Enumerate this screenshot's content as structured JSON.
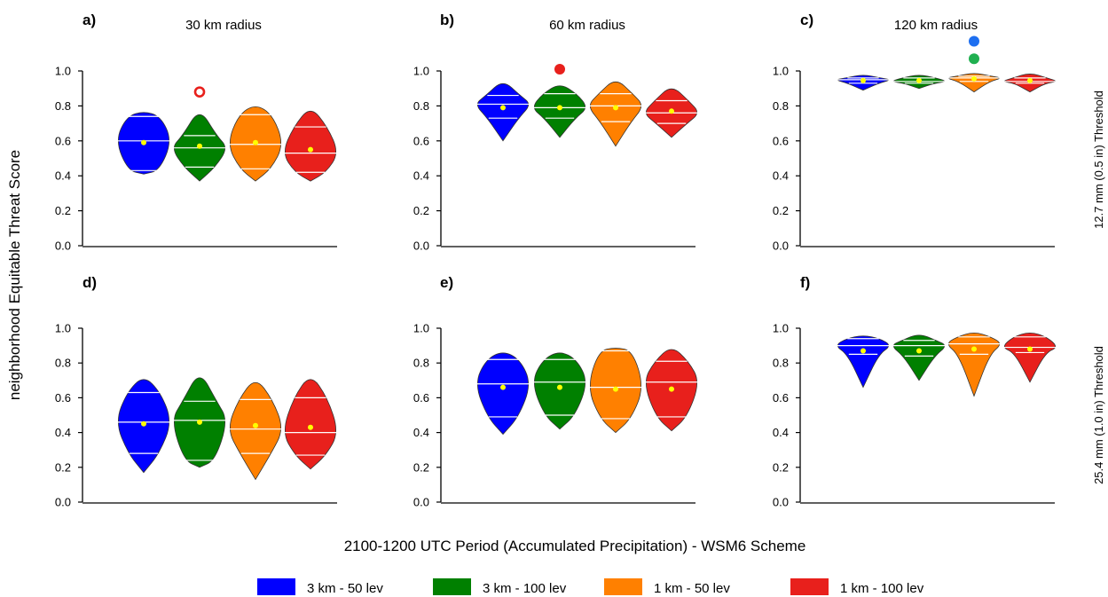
{
  "figure": {
    "ylabel": "neighborhood Equitable Threat Score",
    "xlabel": "2100-1200 UTC Period (Accumulated Precipitation) - WSM6 Scheme",
    "row_labels": [
      "12.7 mm (0.5 in) Threshold",
      "25.4 mm (1.0 in) Threshold"
    ],
    "column_titles": [
      "30 km radius",
      "60 km radius",
      "120 km radius"
    ],
    "panel_letters": [
      "a)",
      "b)",
      "c)",
      "d)",
      "e)",
      "f)"
    ],
    "yticks": [
      "0.0",
      "0.2",
      "0.4",
      "0.6",
      "0.8",
      "1.0"
    ]
  },
  "colors": {
    "3km-50lev": "#0000ff",
    "3km-100lev": "#008000",
    "1km-50lev": "#ff8000",
    "1km-100lev": "#e8201c",
    "mean_dot": "#ffff00",
    "outlier_open": "#e8201c",
    "outlier_blue": "#1e6ff0",
    "outlier_green": "#20b050",
    "outlier_red": "#e8201c"
  },
  "legend": [
    {
      "label": "3 km - 50 lev",
      "color": "#0000ff"
    },
    {
      "label": "3 km - 100 lev",
      "color": "#008000"
    },
    {
      "label": "1 km - 50 lev",
      "color": "#ff8000"
    },
    {
      "label": "1 km - 100 lev",
      "color": "#e8201c"
    }
  ],
  "chart_data": {
    "type": "violin",
    "ylim": [
      0,
      1
    ],
    "series_names": [
      "3 km - 50 lev",
      "3 km - 100 lev",
      "1 km - 50 lev",
      "1 km - 100 lev"
    ],
    "panels": [
      {
        "id": "a",
        "row": 0,
        "col": 0,
        "threshold": "12.7 mm (0.5 in) Threshold",
        "radius": "30 km radius",
        "violins": [
          {
            "min": 0.41,
            "q1": 0.43,
            "median": 0.6,
            "q3": 0.74,
            "max": 0.77,
            "mean": 0.59
          },
          {
            "min": 0.37,
            "q1": 0.45,
            "median": 0.56,
            "q3": 0.63,
            "max": 0.79,
            "mean": 0.57
          },
          {
            "min": 0.37,
            "q1": 0.44,
            "median": 0.58,
            "q3": 0.75,
            "max": 0.81,
            "mean": 0.59
          },
          {
            "min": 0.37,
            "q1": 0.42,
            "median": 0.53,
            "q3": 0.68,
            "max": 0.8,
            "mean": 0.55
          }
        ],
        "outliers": [
          {
            "series": 1,
            "value": 0.88,
            "style": "open",
            "color": "#e8201c"
          }
        ]
      },
      {
        "id": "b",
        "row": 0,
        "col": 1,
        "threshold": "12.7 mm (0.5 in) Threshold",
        "radius": "60 km radius",
        "violins": [
          {
            "min": 0.6,
            "q1": 0.73,
            "median": 0.81,
            "q3": 0.86,
            "max": 0.95,
            "mean": 0.79
          },
          {
            "min": 0.62,
            "q1": 0.73,
            "median": 0.79,
            "q3": 0.87,
            "max": 0.93,
            "mean": 0.79
          },
          {
            "min": 0.57,
            "q1": 0.71,
            "median": 0.8,
            "q3": 0.87,
            "max": 0.96,
            "mean": 0.79
          },
          {
            "min": 0.62,
            "q1": 0.7,
            "median": 0.76,
            "q3": 0.83,
            "max": 0.92,
            "mean": 0.77
          }
        ],
        "outliers": [
          {
            "series": 1,
            "value": 1.01,
            "style": "filled",
            "color": "#e8201c"
          }
        ]
      },
      {
        "id": "c",
        "row": 0,
        "col": 2,
        "threshold": "12.7 mm (0.5 in) Threshold",
        "radius": "120 km radius",
        "violins": [
          {
            "min": 0.89,
            "q1": 0.93,
            "median": 0.95,
            "q3": 0.96,
            "max": 0.98,
            "mean": 0.945
          },
          {
            "min": 0.9,
            "q1": 0.93,
            "median": 0.94,
            "q3": 0.96,
            "max": 0.98,
            "mean": 0.945
          },
          {
            "min": 0.88,
            "q1": 0.94,
            "median": 0.96,
            "q3": 0.97,
            "max": 0.99,
            "mean": 0.955
          },
          {
            "min": 0.88,
            "q1": 0.93,
            "median": 0.94,
            "q3": 0.96,
            "max": 0.99,
            "mean": 0.945
          }
        ],
        "outliers": [
          {
            "series": 2,
            "value": 1.17,
            "style": "filled",
            "color": "#1e6ff0"
          },
          {
            "series": 2,
            "value": 1.07,
            "style": "filled",
            "color": "#20b050"
          }
        ]
      },
      {
        "id": "d",
        "row": 1,
        "col": 0,
        "threshold": "25.4 mm (1.0 in) Threshold",
        "radius": "30 km radius",
        "violins": [
          {
            "min": 0.17,
            "q1": 0.28,
            "median": 0.46,
            "q3": 0.63,
            "max": 0.73,
            "mean": 0.45
          },
          {
            "min": 0.2,
            "q1": 0.24,
            "median": 0.47,
            "q3": 0.58,
            "max": 0.76,
            "mean": 0.46
          },
          {
            "min": 0.13,
            "q1": 0.28,
            "median": 0.42,
            "q3": 0.59,
            "max": 0.72,
            "mean": 0.44
          },
          {
            "min": 0.19,
            "q1": 0.27,
            "median": 0.4,
            "q3": 0.6,
            "max": 0.74,
            "mean": 0.43
          }
        ],
        "outliers": []
      },
      {
        "id": "e",
        "row": 1,
        "col": 1,
        "threshold": "25.4 mm (1.0 in) Threshold",
        "radius": "60 km radius",
        "violins": [
          {
            "min": 0.39,
            "q1": 0.49,
            "median": 0.68,
            "q3": 0.82,
            "max": 0.87,
            "mean": 0.66
          },
          {
            "min": 0.42,
            "q1": 0.5,
            "median": 0.69,
            "q3": 0.82,
            "max": 0.87,
            "mean": 0.66
          },
          {
            "min": 0.4,
            "q1": 0.48,
            "median": 0.66,
            "q3": 0.87,
            "max": 0.89,
            "mean": 0.65
          },
          {
            "min": 0.41,
            "q1": 0.49,
            "median": 0.69,
            "q3": 0.81,
            "max": 0.9,
            "mean": 0.65
          }
        ],
        "outliers": []
      },
      {
        "id": "f",
        "row": 1,
        "col": 2,
        "threshold": "25.4 mm (1.0 in) Threshold",
        "radius": "120 km radius",
        "violins": [
          {
            "min": 0.66,
            "q1": 0.85,
            "median": 0.9,
            "q3": 0.94,
            "max": 0.96,
            "mean": 0.87
          },
          {
            "min": 0.7,
            "q1": 0.84,
            "median": 0.9,
            "q3": 0.93,
            "max": 0.97,
            "mean": 0.87
          },
          {
            "min": 0.61,
            "q1": 0.85,
            "median": 0.91,
            "q3": 0.95,
            "max": 0.98,
            "mean": 0.88
          },
          {
            "min": 0.69,
            "q1": 0.86,
            "median": 0.89,
            "q3": 0.95,
            "max": 0.98,
            "mean": 0.88
          }
        ],
        "outliers": []
      }
    ]
  }
}
